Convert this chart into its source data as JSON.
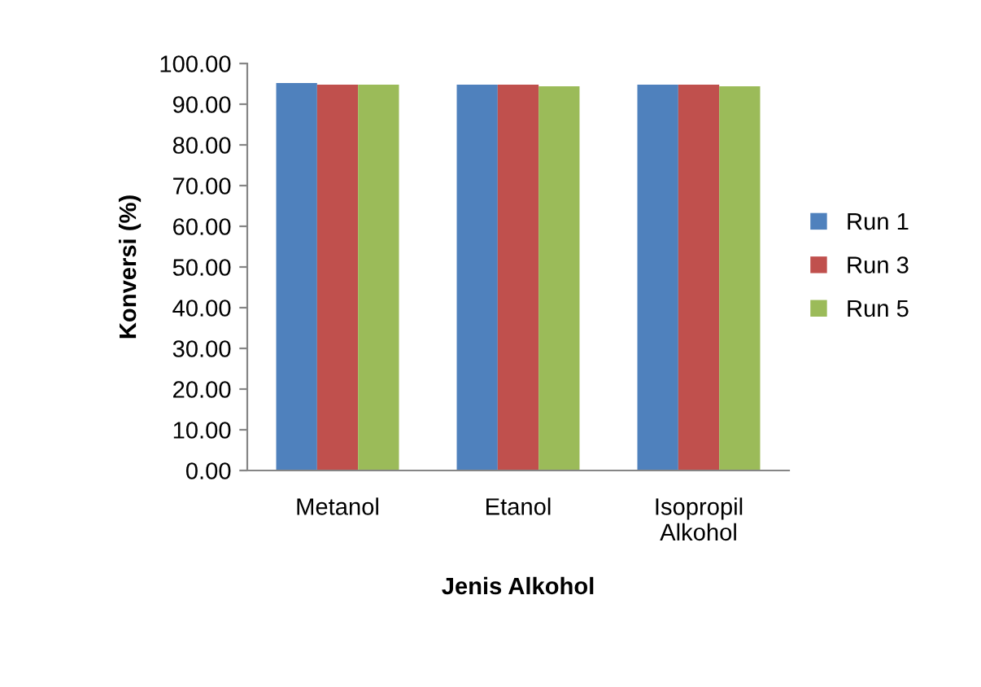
{
  "chart_data": {
    "type": "bar",
    "xlabel": "Jenis Alkohol",
    "ylabel": "Konversi (%)",
    "categories": [
      "Metanol",
      "Etanol",
      "Isopropil\nAlkohol"
    ],
    "series": [
      {
        "name": "Run 1",
        "color": "#4f81bd",
        "values": [
          95.2,
          94.8,
          94.8
        ]
      },
      {
        "name": "Run 3",
        "color": "#c0504d",
        "values": [
          94.8,
          94.8,
          94.8
        ]
      },
      {
        "name": "Run 5",
        "color": "#9bbb59",
        "values": [
          94.8,
          94.4,
          94.4
        ]
      }
    ],
    "ylim": [
      0,
      100
    ],
    "yticks": [
      {
        "value": 0,
        "label": "0.00"
      },
      {
        "value": 10,
        "label": "10.00"
      },
      {
        "value": 20,
        "label": "20.00"
      },
      {
        "value": 30,
        "label": "30.00"
      },
      {
        "value": 40,
        "label": "40.00"
      },
      {
        "value": 50,
        "label": "50.00"
      },
      {
        "value": 60,
        "label": "60.00"
      },
      {
        "value": 70,
        "label": "70.00"
      },
      {
        "value": 80,
        "label": "80.00"
      },
      {
        "value": 90,
        "label": "90.00"
      },
      {
        "value": 100,
        "label": "100.00"
      }
    ],
    "grid": false,
    "legend": "right"
  }
}
